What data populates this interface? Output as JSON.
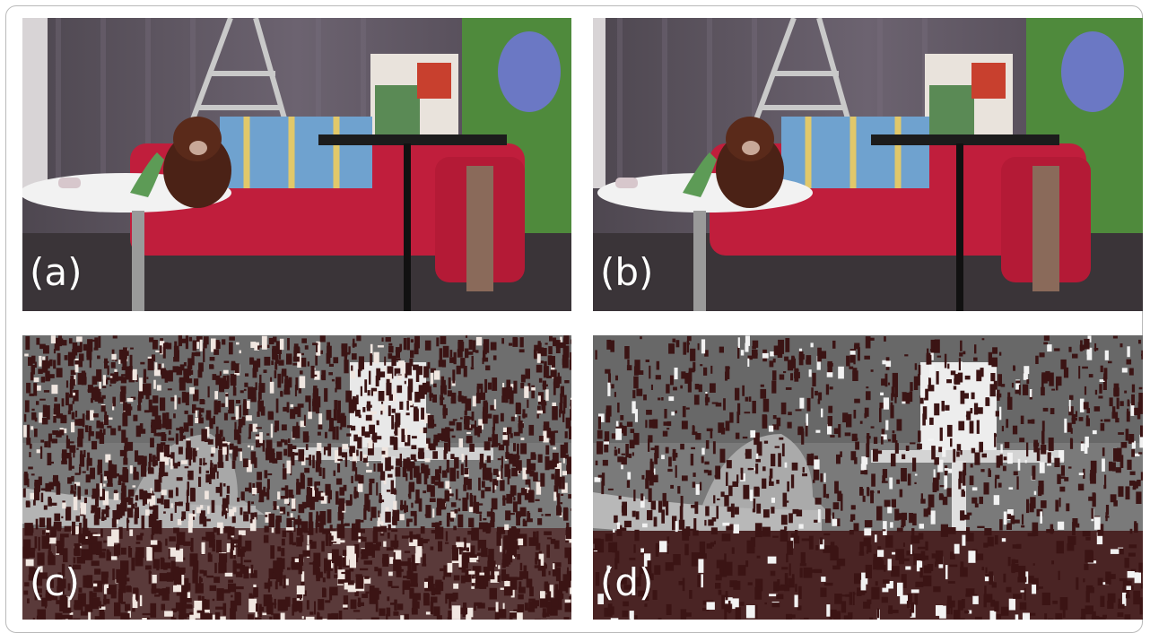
{
  "figure": {
    "panels": [
      {
        "id": "a",
        "label": "(a)",
        "kind": "photo"
      },
      {
        "id": "b",
        "label": "(b)",
        "kind": "photo"
      },
      {
        "id": "c",
        "label": "(c)",
        "kind": "disparity-map"
      },
      {
        "id": "d",
        "label": "(d)",
        "kind": "disparity-map"
      }
    ]
  },
  "colors": {
    "background": "#ffffff",
    "curtain": "#5e5660",
    "sofa": "#c01e3c",
    "table_top": "#f2f2f2",
    "floor": "#3a3438",
    "bear": "#4b2216",
    "blanket": "#6fa2cf",
    "disparity_invalid": "#3b1414",
    "disparity_gray": "#808080"
  }
}
